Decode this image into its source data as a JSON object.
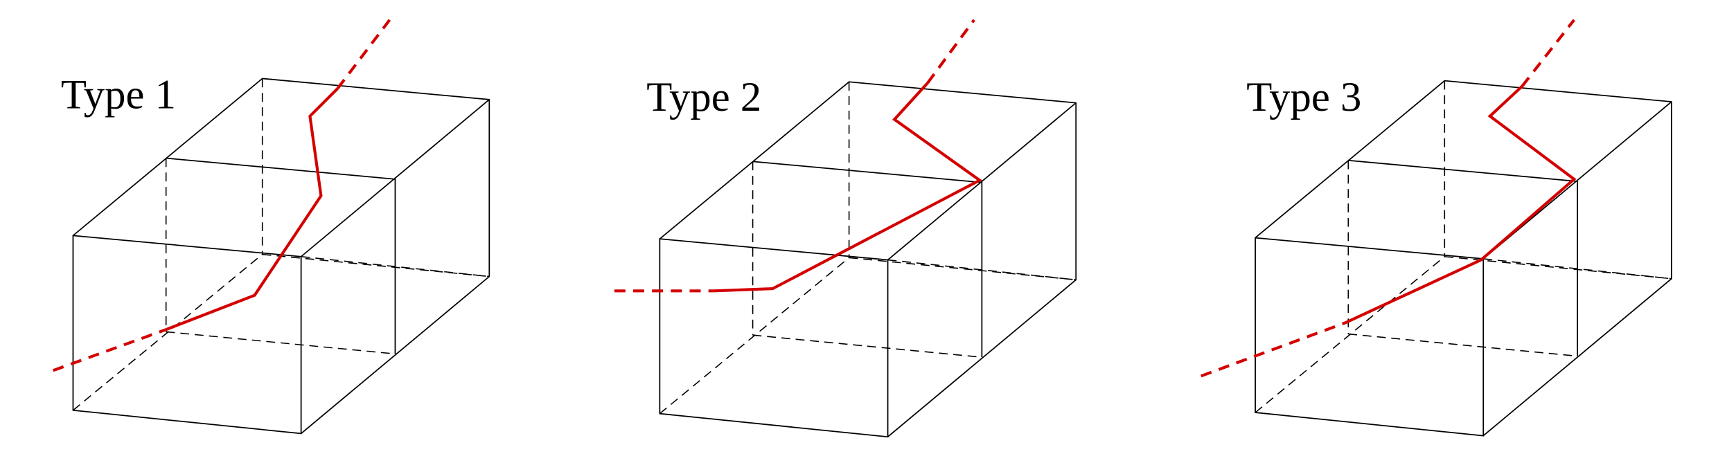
{
  "panels": [
    {
      "label": "Type 1"
    },
    {
      "label": "Type 2"
    },
    {
      "label": "Type 3"
    }
  ]
}
